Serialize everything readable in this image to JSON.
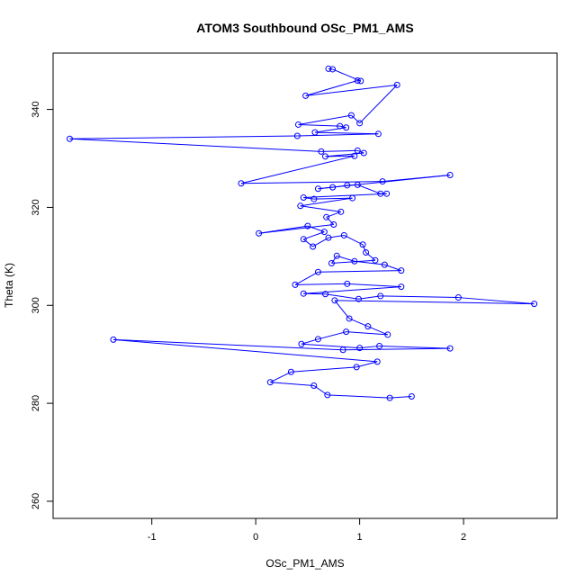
{
  "chart_data": {
    "type": "scatter",
    "title": "ATOM3 Southbound OSc_PM1_AMS",
    "xlabel": "OSc_PM1_AMS",
    "ylabel": "Theta (K)",
    "xlim": [
      -1.95,
      2.9
    ],
    "ylim": [
      256.5,
      351.5
    ],
    "xticks": [
      -1,
      0,
      1,
      2
    ],
    "yticks": [
      260,
      280,
      300,
      320,
      340
    ],
    "grid": false,
    "connect_points": true,
    "color": "#0000ff",
    "series": [
      {
        "values": [
          {
            "x": 0.7,
            "y": 348.3
          },
          {
            "x": 0.74,
            "y": 348.2
          },
          {
            "x": 1.01,
            "y": 345.8
          },
          {
            "x": 0.98,
            "y": 345.9
          },
          {
            "x": 0.48,
            "y": 342.8
          },
          {
            "x": 1.36,
            "y": 345.0
          },
          {
            "x": 1.0,
            "y": 337.2
          },
          {
            "x": 0.92,
            "y": 338.8
          },
          {
            "x": 0.41,
            "y": 336.9
          },
          {
            "x": 0.81,
            "y": 336.6
          },
          {
            "x": 0.87,
            "y": 336.3
          },
          {
            "x": 0.57,
            "y": 335.3
          },
          {
            "x": 1.18,
            "y": 335.0
          },
          {
            "x": 0.4,
            "y": 334.6
          },
          {
            "x": -1.79,
            "y": 334.0
          },
          {
            "x": 0.63,
            "y": 331.4
          },
          {
            "x": 0.98,
            "y": 331.6
          },
          {
            "x": 1.04,
            "y": 331.1
          },
          {
            "x": 0.67,
            "y": 330.4
          },
          {
            "x": 0.95,
            "y": 330.5
          },
          {
            "x": -0.14,
            "y": 324.9
          },
          {
            "x": 1.22,
            "y": 325.3
          },
          {
            "x": 1.87,
            "y": 326.6
          },
          {
            "x": 0.6,
            "y": 323.8
          },
          {
            "x": 0.74,
            "y": 324.1
          },
          {
            "x": 0.88,
            "y": 324.5
          },
          {
            "x": 0.98,
            "y": 324.6
          },
          {
            "x": 1.2,
            "y": 322.8
          },
          {
            "x": 1.26,
            "y": 322.8
          },
          {
            "x": 0.46,
            "y": 322.0
          },
          {
            "x": 0.56,
            "y": 321.7
          },
          {
            "x": 0.93,
            "y": 321.9
          },
          {
            "x": 0.43,
            "y": 320.3
          },
          {
            "x": 0.82,
            "y": 319.1
          },
          {
            "x": 0.68,
            "y": 318.0
          },
          {
            "x": 0.75,
            "y": 316.5
          },
          {
            "x": 0.03,
            "y": 314.7
          },
          {
            "x": 0.5,
            "y": 316.2
          },
          {
            "x": 0.66,
            "y": 315.0
          },
          {
            "x": 0.46,
            "y": 313.5
          },
          {
            "x": 0.55,
            "y": 312.0
          },
          {
            "x": 0.7,
            "y": 313.8
          },
          {
            "x": 0.85,
            "y": 314.3
          },
          {
            "x": 1.03,
            "y": 312.4
          },
          {
            "x": 1.06,
            "y": 310.8
          },
          {
            "x": 1.15,
            "y": 309.2
          },
          {
            "x": 0.73,
            "y": 308.6
          },
          {
            "x": 0.78,
            "y": 310.1
          },
          {
            "x": 0.95,
            "y": 309.0
          },
          {
            "x": 1.24,
            "y": 308.3
          },
          {
            "x": 1.4,
            "y": 307.1
          },
          {
            "x": 0.6,
            "y": 306.8
          },
          {
            "x": 0.38,
            "y": 304.2
          },
          {
            "x": 0.88,
            "y": 304.4
          },
          {
            "x": 1.4,
            "y": 303.8
          },
          {
            "x": 0.46,
            "y": 302.4
          },
          {
            "x": 0.67,
            "y": 302.3
          },
          {
            "x": 0.99,
            "y": 301.3
          },
          {
            "x": 1.2,
            "y": 301.9
          },
          {
            "x": 1.95,
            "y": 301.6
          },
          {
            "x": 2.68,
            "y": 300.3
          },
          {
            "x": 0.76,
            "y": 301.0
          },
          {
            "x": 0.9,
            "y": 297.3
          },
          {
            "x": 1.08,
            "y": 295.7
          },
          {
            "x": 1.27,
            "y": 294.0
          },
          {
            "x": 0.87,
            "y": 294.6
          },
          {
            "x": 0.6,
            "y": 293.1
          },
          {
            "x": 0.44,
            "y": 292.1
          },
          {
            "x": 1.0,
            "y": 291.3
          },
          {
            "x": 1.19,
            "y": 291.7
          },
          {
            "x": 1.87,
            "y": 291.2
          },
          {
            "x": 0.84,
            "y": 290.9
          },
          {
            "x": -1.37,
            "y": 293.0
          },
          {
            "x": 1.17,
            "y": 288.5
          },
          {
            "x": 0.97,
            "y": 287.4
          },
          {
            "x": 0.34,
            "y": 286.4
          },
          {
            "x": 0.14,
            "y": 284.3
          },
          {
            "x": 0.56,
            "y": 283.6
          },
          {
            "x": 0.69,
            "y": 281.7
          },
          {
            "x": 1.29,
            "y": 281.1
          },
          {
            "x": 1.5,
            "y": 281.4
          }
        ]
      }
    ]
  }
}
